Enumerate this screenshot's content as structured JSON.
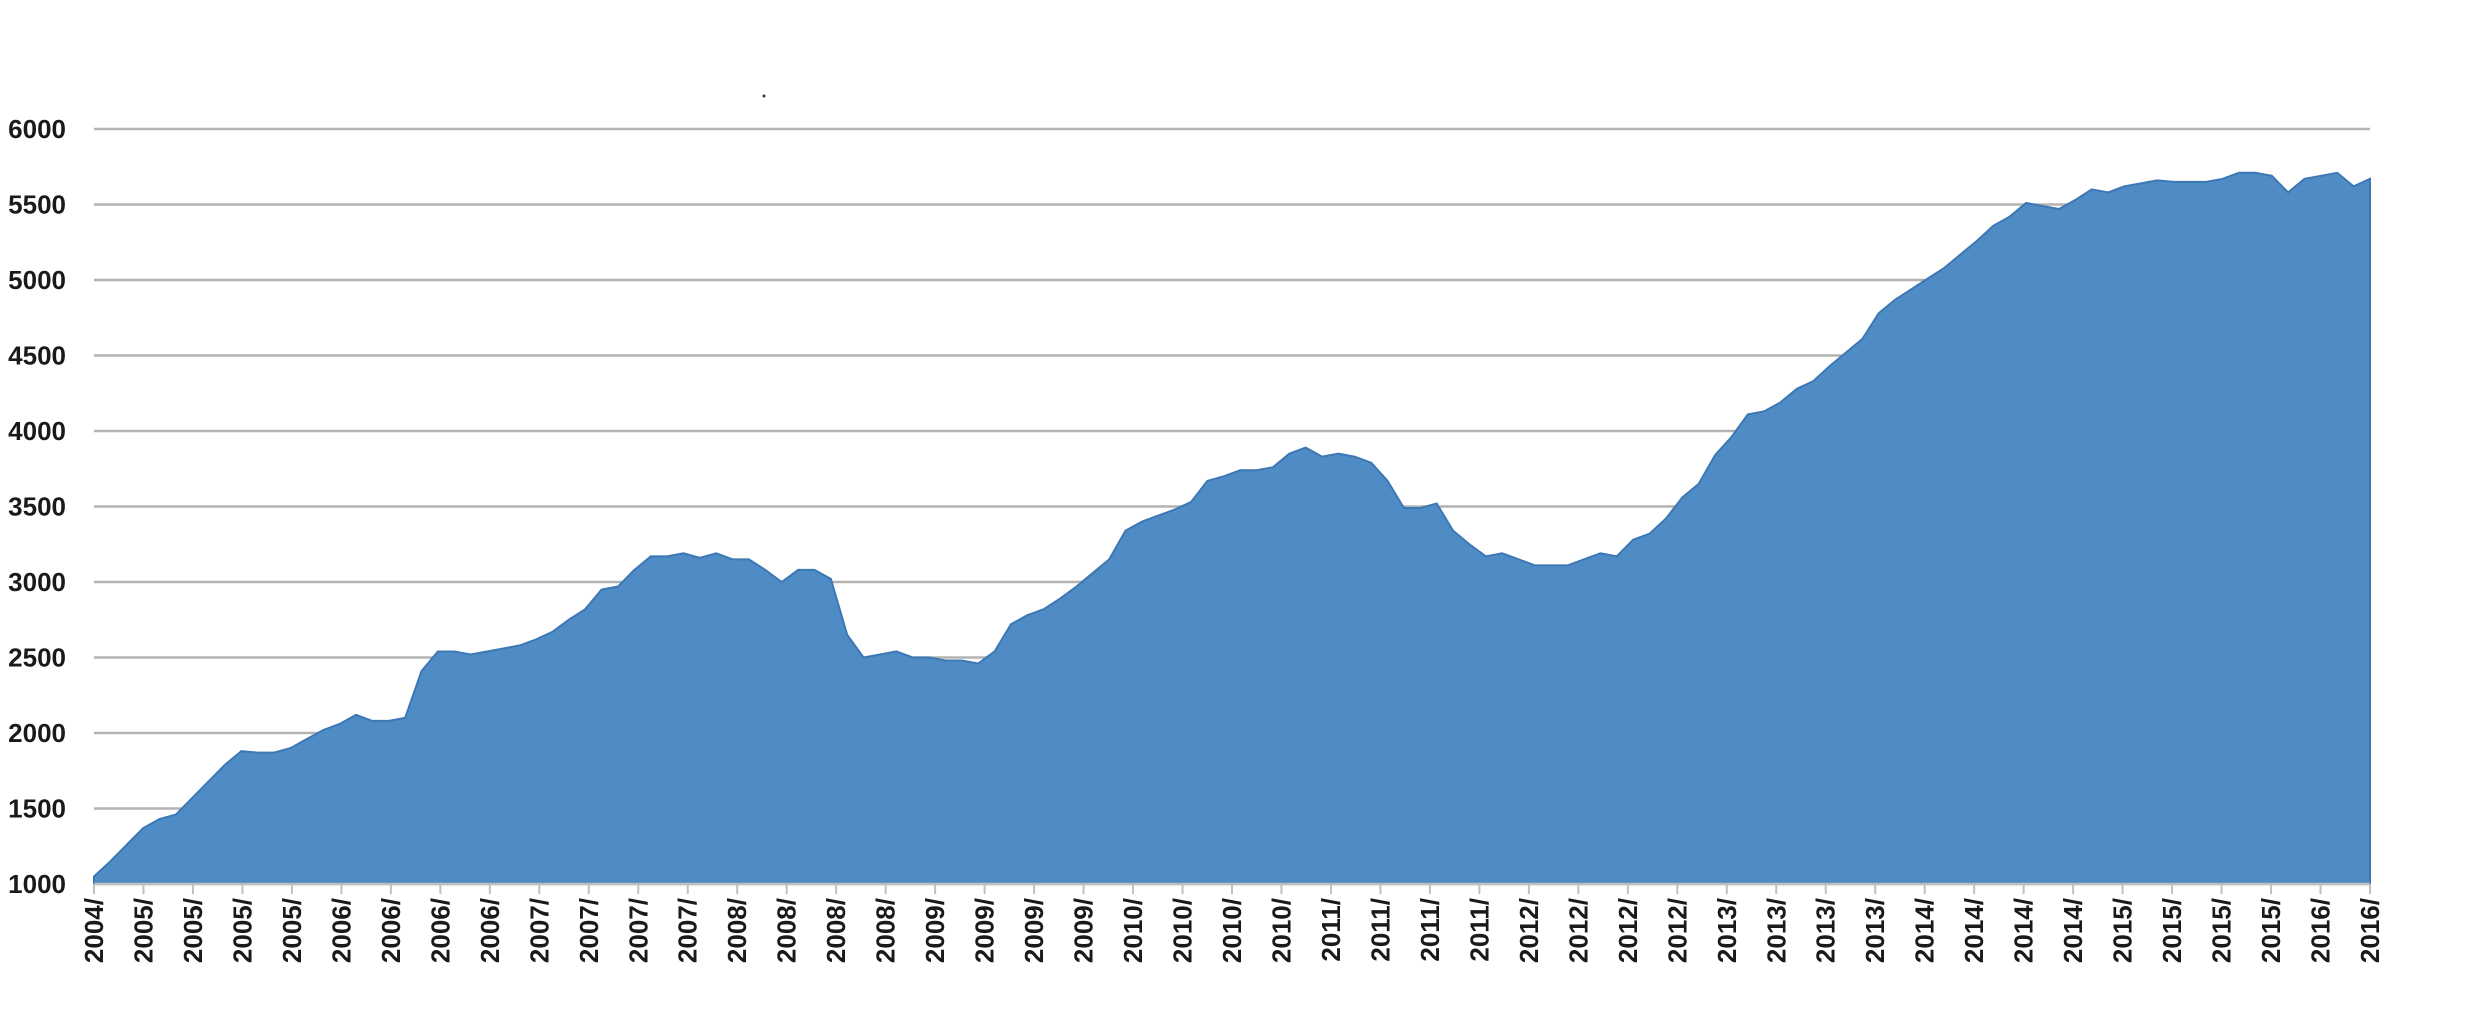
{
  "chart_data": {
    "type": "area",
    "title": "",
    "xlabel": "",
    "ylabel": "",
    "ylim": [
      1000,
      6000
    ],
    "yticks": [
      "1000",
      "1500",
      "2000",
      "2500",
      "3000",
      "3500",
      "4000",
      "4500",
      "5000",
      "5500",
      "6000"
    ],
    "grid": true,
    "legend": "none",
    "colors": {
      "area": "#4f8bc4",
      "area_edge": "#3c78b4",
      "grid": "#b3b3b3",
      "axis": "#bfbfbf",
      "rule": "#000000"
    },
    "x_tick_labels": [
      "2004/",
      "2005/",
      "2005/",
      "2005/",
      "2005/",
      "2006/",
      "2006/",
      "2006/",
      "2006/",
      "2007/",
      "2007/",
      "2007/",
      "2007/",
      "2008/",
      "2008/",
      "2008/",
      "2008/",
      "2009/",
      "2009/",
      "2009/",
      "2009/",
      "2010/",
      "2010/",
      "2010/",
      "2010/",
      "2011/",
      "2011/",
      "2011/",
      "2011/",
      "2012/",
      "2012/",
      "2012/",
      "2012/",
      "2013/",
      "2013/",
      "2013/",
      "2013/",
      "2014/",
      "2014/",
      "2014/",
      "2014/",
      "2015/",
      "2015/",
      "2015/",
      "2015/",
      "2016/",
      "2016/"
    ],
    "series": [
      {
        "values": [
          1050,
          1150,
          1260,
          1370,
          1430,
          1460,
          1570,
          1680,
          1790,
          1880,
          1870,
          1870,
          1900,
          1960,
          2020,
          2060,
          2120,
          2080,
          2080,
          2100,
          2410,
          2540,
          2540,
          2520,
          2540,
          2560,
          2580,
          2620,
          2670,
          2750,
          2820,
          2950,
          2970,
          3080,
          3170,
          3170,
          3190,
          3160,
          3190,
          3150,
          3150,
          3080,
          3000,
          3080,
          3080,
          3020,
          2650,
          2500,
          2520,
          2540,
          2500,
          2500,
          2480,
          2480,
          2460,
          2540,
          2720,
          2780,
          2820,
          2890,
          2970,
          3060,
          3150,
          3340,
          3400,
          3440,
          3480,
          3530,
          3670,
          3700,
          3740,
          3740,
          3760,
          3850,
          3890,
          3830,
          3850,
          3830,
          3790,
          3670,
          3490,
          3490,
          3520,
          3340,
          3250,
          3170,
          3190,
          3150,
          3110,
          3110,
          3110,
          3150,
          3190,
          3170,
          3280,
          3320,
          3420,
          3560,
          3650,
          3840,
          3960,
          4110,
          4130,
          4190,
          4280,
          4330,
          4430,
          4520,
          4610,
          4780,
          4870,
          4940,
          5010,
          5080,
          5170,
          5260,
          5360,
          5420,
          5510,
          5490,
          5470,
          5530,
          5600,
          5580,
          5620,
          5640,
          5660,
          5650,
          5650,
          5650,
          5670,
          5710,
          5710,
          5690,
          5580,
          5670,
          5690,
          5710,
          5620,
          5670
        ]
      }
    ]
  }
}
